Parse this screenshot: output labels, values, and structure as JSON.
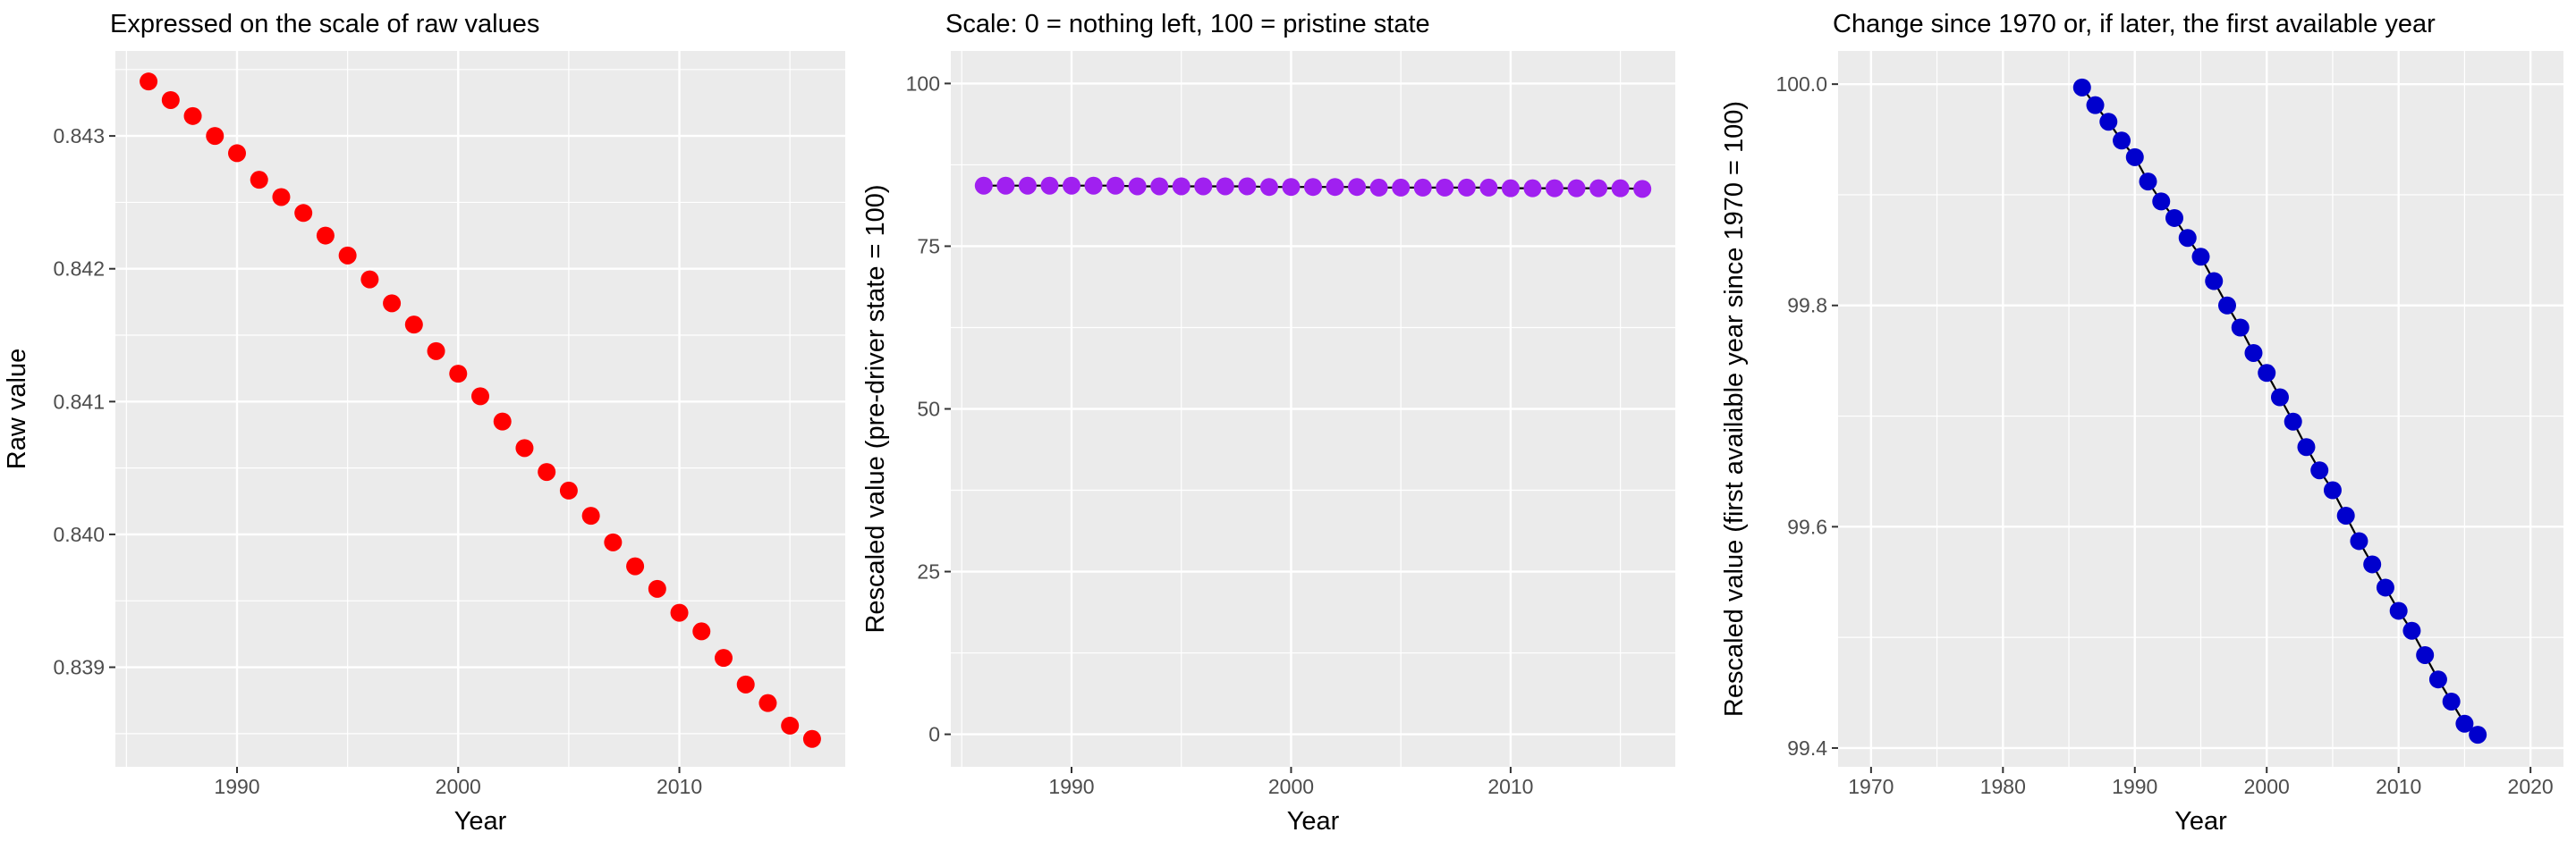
{
  "chart_data": [
    {
      "type": "scatter",
      "title": "Expressed on the scale of raw values",
      "xlabel": "Year",
      "ylabel": "Raw value",
      "xlim": [
        1984.5,
        2017.5
      ],
      "ylim": [
        0.83825,
        0.84364
      ],
      "xticks": [
        1990,
        2000,
        2010
      ],
      "xminor": [
        1985,
        1995,
        2005,
        2015
      ],
      "yticks": [
        0.839,
        0.84,
        0.841,
        0.842,
        0.843
      ],
      "yminor": [
        0.8385,
        0.8395,
        0.8405,
        0.8415,
        0.8425,
        0.8435
      ],
      "ytick_format": 3,
      "point_color": "#ff0000",
      "line": false,
      "grid": true,
      "x": [
        1986,
        1987,
        1988,
        1989,
        1990,
        1991,
        1992,
        1993,
        1994,
        1995,
        1996,
        1997,
        1998,
        1999,
        2000,
        2001,
        2002,
        2003,
        2004,
        2005,
        2006,
        2007,
        2008,
        2009,
        2010,
        2011,
        2012,
        2013,
        2014,
        2015,
        2016
      ],
      "y": [
        0.84341,
        0.84327,
        0.84315,
        0.843,
        0.84287,
        0.84267,
        0.84254,
        0.84242,
        0.84225,
        0.8421,
        0.84192,
        0.84174,
        0.84158,
        0.84138,
        0.84121,
        0.84104,
        0.84085,
        0.84065,
        0.84047,
        0.84033,
        0.84014,
        0.83994,
        0.83976,
        0.83959,
        0.83941,
        0.83927,
        0.83907,
        0.83887,
        0.83873,
        0.83856,
        0.83846
      ]
    },
    {
      "type": "line",
      "title": "Scale: 0 = nothing left, 100 = pristine state",
      "xlabel": "Year",
      "ylabel": "Rescaled value (pre-driver state = 100)",
      "xlim": [
        1984.5,
        2017.5
      ],
      "ylim": [
        -5,
        105
      ],
      "xticks": [
        1990,
        2000,
        2010
      ],
      "xminor": [
        1985,
        1995,
        2005,
        2015
      ],
      "yticks": [
        0,
        25,
        50,
        75,
        100
      ],
      "yminor": [
        12.5,
        37.5,
        62.5,
        87.5
      ],
      "ytick_format": 0,
      "point_color": "#a020f0",
      "line": true,
      "line_color": "#000000",
      "grid": true,
      "x": [
        1986,
        1987,
        1988,
        1989,
        1990,
        1991,
        1992,
        1993,
        1994,
        1995,
        1996,
        1997,
        1998,
        1999,
        2000,
        2001,
        2002,
        2003,
        2004,
        2005,
        2006,
        2007,
        2008,
        2009,
        2010,
        2011,
        2012,
        2013,
        2014,
        2015,
        2016
      ],
      "y": [
        84.3,
        84.3,
        84.3,
        84.3,
        84.3,
        84.3,
        84.3,
        84.2,
        84.2,
        84.2,
        84.2,
        84.2,
        84.2,
        84.1,
        84.1,
        84.1,
        84.1,
        84.1,
        84.0,
        84.0,
        84.0,
        84.0,
        84.0,
        84.0,
        83.9,
        83.9,
        83.9,
        83.9,
        83.9,
        83.9,
        83.8
      ]
    },
    {
      "type": "line",
      "title": "Change since 1970 or, if later, the first available year",
      "xlabel": "Year",
      "ylabel": "Rescaled value (first available year since 1970 = 100)",
      "xlim": [
        1967.5,
        2022.5
      ],
      "ylim": [
        99.383,
        100.03
      ],
      "xticks": [
        1970,
        1980,
        1990,
        2000,
        2010,
        2020
      ],
      "xminor": [
        1975,
        1985,
        1995,
        2005,
        2015
      ],
      "yticks": [
        99.4,
        99.6,
        99.8,
        100.0
      ],
      "yminor": [
        99.5,
        99.7,
        99.9
      ],
      "ytick_format": 1,
      "point_color": "#0000cd",
      "line": true,
      "line_color": "#000000",
      "grid": true,
      "x": [
        1986,
        1987,
        1988,
        1989,
        1990,
        1991,
        1992,
        1993,
        1994,
        1995,
        1996,
        1997,
        1998,
        1999,
        2000,
        2001,
        2002,
        2003,
        2004,
        2005,
        2006,
        2007,
        2008,
        2009,
        2010,
        2011,
        2012,
        2013,
        2014,
        2015,
        2016
      ],
      "y": [
        99.997,
        99.981,
        99.966,
        99.949,
        99.934,
        99.912,
        99.894,
        99.879,
        99.861,
        99.844,
        99.822,
        99.8,
        99.78,
        99.757,
        99.739,
        99.717,
        99.695,
        99.672,
        99.651,
        99.633,
        99.61,
        99.587,
        99.566,
        99.545,
        99.524,
        99.506,
        99.484,
        99.462,
        99.442,
        99.422,
        99.412
      ]
    }
  ]
}
